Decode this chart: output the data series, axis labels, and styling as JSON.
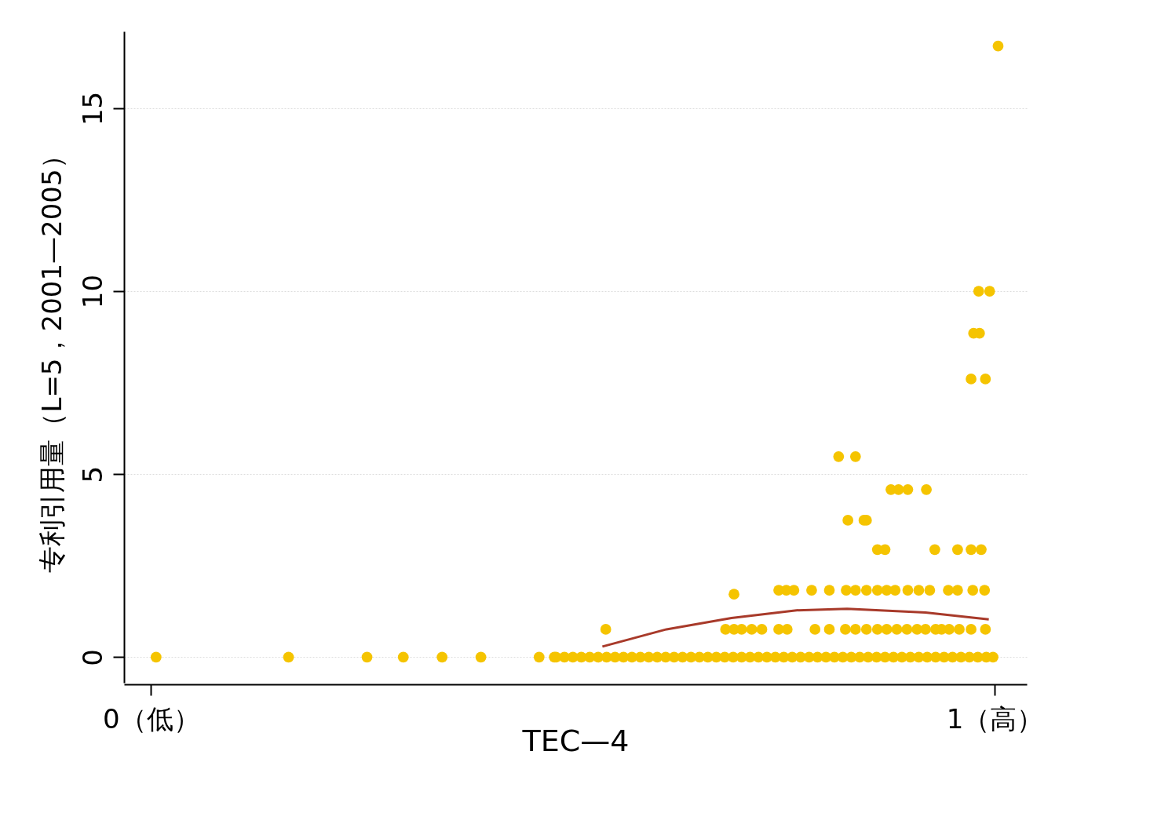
{
  "chart_data": {
    "type": "scatter",
    "xlabel": "TEC—4",
    "ylabel": "专利引用量（L=5，2001—2005）",
    "xlim": [
      -0.032,
      1.038
    ],
    "ylim": [
      -0.7,
      17.1
    ],
    "xticks": [
      {
        "value": 0,
        "label": "0（低）"
      },
      {
        "value": 1,
        "label": "1（高）"
      }
    ],
    "yticks": [
      0,
      5,
      10,
      15
    ],
    "grid": "y",
    "series": [
      {
        "marker": "circle",
        "color": "#f5c400",
        "x": [
          0.006,
          0.163,
          0.256,
          0.299,
          0.345,
          0.391,
          0.46,
          0.478,
          0.48,
          0.49,
          0.5,
          0.51,
          0.52,
          0.53,
          0.54,
          0.55,
          0.56,
          0.57,
          0.58,
          0.59,
          0.6,
          0.61,
          0.62,
          0.63,
          0.64,
          0.65,
          0.66,
          0.67,
          0.68,
          0.69,
          0.7,
          0.71,
          0.72,
          0.73,
          0.74,
          0.75,
          0.76,
          0.77,
          0.78,
          0.79,
          0.8,
          0.81,
          0.82,
          0.83,
          0.84,
          0.85,
          0.86,
          0.87,
          0.88,
          0.89,
          0.9,
          0.91,
          0.92,
          0.93,
          0.94,
          0.95,
          0.96,
          0.97,
          0.98,
          0.99,
          0.998,
          0.539,
          0.681,
          0.691,
          0.7,
          0.712,
          0.724,
          0.744,
          0.754,
          0.787,
          0.804,
          0.823,
          0.835,
          0.848,
          0.861,
          0.872,
          0.884,
          0.896,
          0.908,
          0.918,
          0.93,
          0.937,
          0.946,
          0.958,
          0.972,
          0.989,
          0.744,
          0.753,
          0.762,
          0.783,
          0.804,
          0.824,
          0.835,
          0.848,
          0.861,
          0.872,
          0.882,
          0.897,
          0.91,
          0.923,
          0.945,
          0.956,
          0.974,
          0.988,
          0.691,
          0.861,
          0.87,
          0.929,
          0.956,
          0.972,
          0.984,
          0.826,
          0.845,
          0.848,
          0.877,
          0.886,
          0.897,
          0.919,
          0.815,
          0.835,
          0.972,
          0.989,
          0.975,
          0.982,
          0.981,
          0.994,
          1.004
        ],
        "values": [
          0,
          0,
          0,
          0,
          0,
          0,
          0,
          0,
          0,
          0,
          0,
          0,
          0,
          0,
          0,
          0,
          0,
          0,
          0,
          0,
          0,
          0,
          0,
          0,
          0,
          0,
          0,
          0,
          0,
          0,
          0,
          0,
          0,
          0,
          0,
          0,
          0,
          0,
          0,
          0,
          0,
          0,
          0,
          0,
          0,
          0,
          0,
          0,
          0,
          0,
          0,
          0,
          0,
          0,
          0,
          0,
          0,
          0,
          0,
          0,
          0,
          0.76,
          0.76,
          0.76,
          0.76,
          0.76,
          0.76,
          0.76,
          0.76,
          0.76,
          0.76,
          0.76,
          0.76,
          0.76,
          0.76,
          0.76,
          0.76,
          0.76,
          0.76,
          0.76,
          0.76,
          0.76,
          0.76,
          0.76,
          0.76,
          0.76,
          1.83,
          1.83,
          1.83,
          1.83,
          1.83,
          1.83,
          1.83,
          1.83,
          1.83,
          1.83,
          1.83,
          1.83,
          1.83,
          1.83,
          1.83,
          1.83,
          1.83,
          1.83,
          1.72,
          2.94,
          2.94,
          2.94,
          2.94,
          2.94,
          2.94,
          3.74,
          3.74,
          3.74,
          4.58,
          4.58,
          4.58,
          4.58,
          5.48,
          5.48,
          7.6,
          7.6,
          8.85,
          8.85,
          10,
          10,
          16.7
        ]
      },
      {
        "type": "line",
        "color": "#a83a2a",
        "x": [
          0.535,
          0.611,
          0.688,
          0.765,
          0.825,
          0.918,
          0.993
        ],
        "values": [
          0.29,
          0.76,
          1.07,
          1.28,
          1.32,
          1.22,
          1.03
        ]
      }
    ]
  }
}
